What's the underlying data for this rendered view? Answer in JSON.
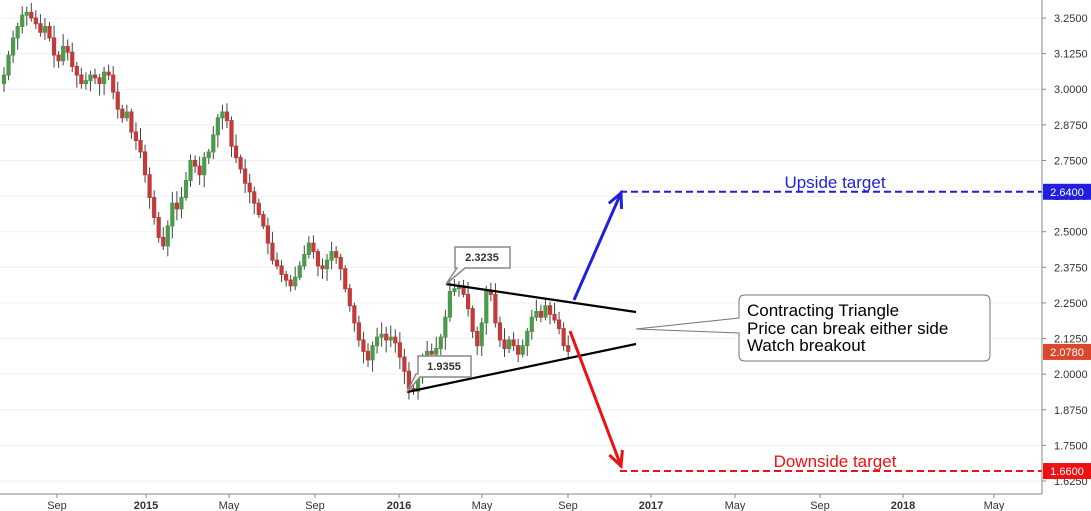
{
  "chart_data": {
    "type": "candlestick",
    "y_axis": {
      "position": "right",
      "range": [
        1.6,
        3.3
      ],
      "ticks": [
        "3.2500",
        "3.1250",
        "3.0000",
        "2.8750",
        "2.7500",
        "2.6250",
        "2.5000",
        "2.3750",
        "2.2500",
        "2.1250",
        "2.0000",
        "1.8750",
        "1.7500",
        "1.6250"
      ]
    },
    "x_axis": {
      "labels": [
        {
          "text": "Sep",
          "bold": false
        },
        {
          "text": "2015",
          "bold": true
        },
        {
          "text": "May",
          "bold": false
        },
        {
          "text": "Sep",
          "bold": false
        },
        {
          "text": "2016",
          "bold": true
        },
        {
          "text": "May",
          "bold": false
        },
        {
          "text": "Sep",
          "bold": false
        },
        {
          "text": "2017",
          "bold": true
        },
        {
          "text": "May",
          "bold": false
        },
        {
          "text": "Sep",
          "bold": false
        },
        {
          "text": "2018",
          "bold": true
        },
        {
          "text": "May",
          "bold": false
        }
      ]
    },
    "close_series": [
      3.05,
      3.12,
      3.18,
      3.22,
      3.26,
      3.27,
      3.25,
      3.23,
      3.2,
      3.22,
      3.18,
      3.12,
      3.1,
      3.15,
      3.13,
      3.08,
      3.05,
      3.02,
      3.03,
      3.05,
      3.04,
      3.02,
      3.06,
      3.05,
      2.99,
      2.93,
      2.9,
      2.92,
      2.85,
      2.82,
      2.78,
      2.7,
      2.62,
      2.55,
      2.48,
      2.45,
      2.52,
      2.6,
      2.58,
      2.62,
      2.68,
      2.75,
      2.73,
      2.7,
      2.76,
      2.78,
      2.84,
      2.9,
      2.92,
      2.89,
      2.8,
      2.76,
      2.72,
      2.67,
      2.64,
      2.6,
      2.56,
      2.52,
      2.46,
      2.4,
      2.38,
      2.35,
      2.33,
      2.31,
      2.34,
      2.38,
      2.42,
      2.46,
      2.43,
      2.38,
      2.37,
      2.4,
      2.43,
      2.41,
      2.37,
      2.3,
      2.24,
      2.18,
      2.12,
      2.08,
      2.05,
      2.1,
      2.13,
      2.14,
      2.12,
      2.13,
      2.11,
      2.06,
      2.01,
      1.95,
      1.94,
      1.99,
      2.04,
      2.08,
      2.07,
      2.09,
      2.13,
      2.2,
      2.29,
      2.3,
      2.31,
      2.28,
      2.23,
      2.15,
      2.1,
      2.18,
      2.29,
      2.28,
      2.18,
      2.12,
      2.09,
      2.12,
      2.1,
      2.07,
      2.1,
      2.15,
      2.2,
      2.22,
      2.2,
      2.24,
      2.21,
      2.19,
      2.16,
      2.1,
      2.08
    ],
    "targets": [
      {
        "label": "Upside target",
        "value": "2.6400",
        "color": "#1f1fdd"
      },
      {
        "label": "Downside target",
        "value": "1.6600",
        "color": "#ee1111"
      }
    ],
    "current_price": {
      "value": "2.0780",
      "color": "#d9482c"
    },
    "pivots": [
      {
        "label": "2.3235"
      },
      {
        "label": "1.9355"
      }
    ],
    "annotation": {
      "lines": [
        "Contracting Triangle",
        "Price can break either side",
        "Watch breakout"
      ]
    },
    "colors": {
      "up": "#4a9b4a",
      "down": "#c23b3b"
    }
  }
}
